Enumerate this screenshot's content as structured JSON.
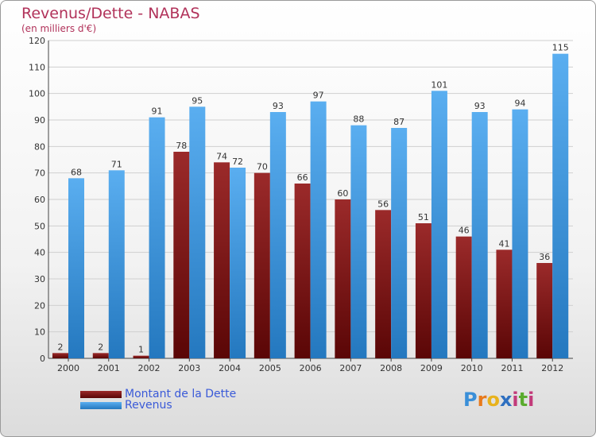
{
  "header": {
    "title": "Revenus/Dette - NABAS",
    "subtitle": "(en milliers d'€)"
  },
  "brand": {
    "letters": [
      "P",
      "r",
      "o",
      "x",
      "i",
      "t",
      "i"
    ],
    "colors": [
      "#3a8fd8",
      "#e87a1c",
      "#e8b21c",
      "#2e6fc0",
      "#c23a7a",
      "#5aab2e",
      "#c23a7a"
    ]
  },
  "chart_data": {
    "type": "bar",
    "categories": [
      "2000",
      "2001",
      "2002",
      "2003",
      "2004",
      "2005",
      "2006",
      "2007",
      "2008",
      "2009",
      "2010",
      "2011",
      "2012"
    ],
    "series": [
      {
        "name": "Montant de la Dette",
        "color": "#8b1a1a",
        "values": [
          2,
          2,
          1,
          78,
          74,
          70,
          66,
          60,
          56,
          51,
          46,
          41,
          36
        ]
      },
      {
        "name": "Revenus",
        "color": "#3d9be0",
        "values": [
          68,
          71,
          91,
          95,
          72,
          93,
          97,
          88,
          87,
          101,
          93,
          94,
          115
        ]
      }
    ],
    "yticks": [
      0,
      10,
      20,
      30,
      40,
      50,
      60,
      70,
      80,
      90,
      100,
      110,
      120
    ],
    "ylim": [
      0,
      120
    ],
    "grid": true,
    "legend": "bottom-left"
  }
}
